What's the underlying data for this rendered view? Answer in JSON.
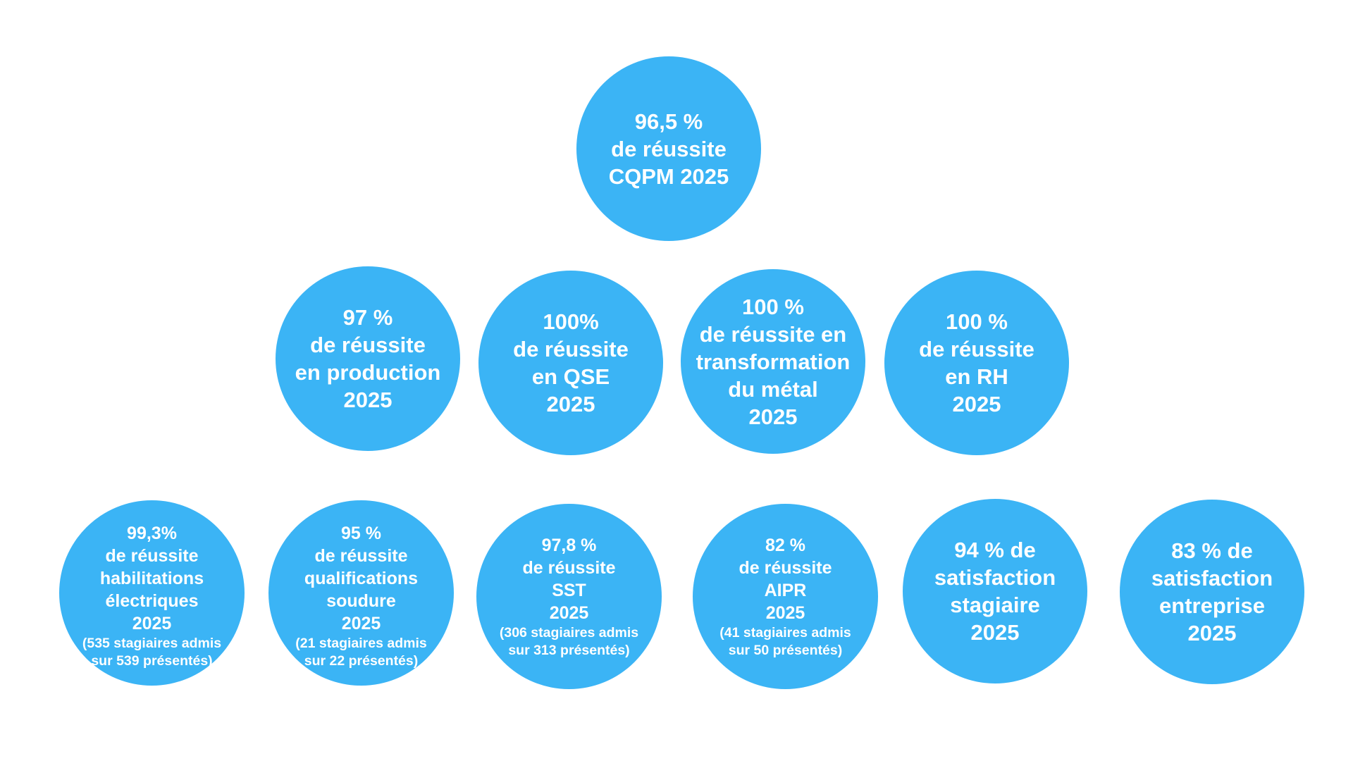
{
  "accent_color": "#3bb4f5",
  "bubbles": [
    {
      "id": "cqpm",
      "lines": [
        "96,5 %",
        "de réussite",
        "CQPM 2025"
      ],
      "note": []
    },
    {
      "id": "production",
      "lines": [
        "97 %",
        "de réussite",
        "en production",
        "2025"
      ],
      "note": []
    },
    {
      "id": "qse",
      "lines": [
        "100%",
        "de réussite",
        "en QSE",
        "2025"
      ],
      "note": []
    },
    {
      "id": "metal",
      "lines": [
        "100 %",
        "de réussite en",
        "transformation",
        "du métal",
        "2025"
      ],
      "note": []
    },
    {
      "id": "rh",
      "lines": [
        "100 %",
        "de réussite",
        "en RH",
        "2025"
      ],
      "note": []
    },
    {
      "id": "habilitations",
      "lines": [
        "99,3%",
        "de réussite",
        "habilitations",
        "électriques",
        "2025"
      ],
      "note": [
        "(535 stagiaires admis",
        "sur 539 présentés)"
      ]
    },
    {
      "id": "soudure",
      "lines": [
        "95 %",
        "de réussite",
        "qualifications",
        "soudure",
        "2025"
      ],
      "note": [
        "(21 stagiaires admis",
        "sur 22 présentés)"
      ]
    },
    {
      "id": "sst",
      "lines": [
        "97,8 %",
        "de réussite",
        "SST",
        "2025"
      ],
      "note": [
        "(306 stagiaires admis",
        "sur 313 présentés)"
      ]
    },
    {
      "id": "aipr",
      "lines": [
        "82 %",
        "de réussite",
        "AIPR",
        "2025"
      ],
      "note": [
        "(41 stagiaires admis",
        "sur 50 présentés)"
      ]
    },
    {
      "id": "satisfaction-stagiaire",
      "lines": [
        "94 % de",
        "satisfaction",
        "stagiaire",
        "2025"
      ],
      "note": []
    },
    {
      "id": "satisfaction-entreprise",
      "lines": [
        "83 % de",
        "satisfaction",
        "entreprise",
        "2025"
      ],
      "note": []
    }
  ]
}
